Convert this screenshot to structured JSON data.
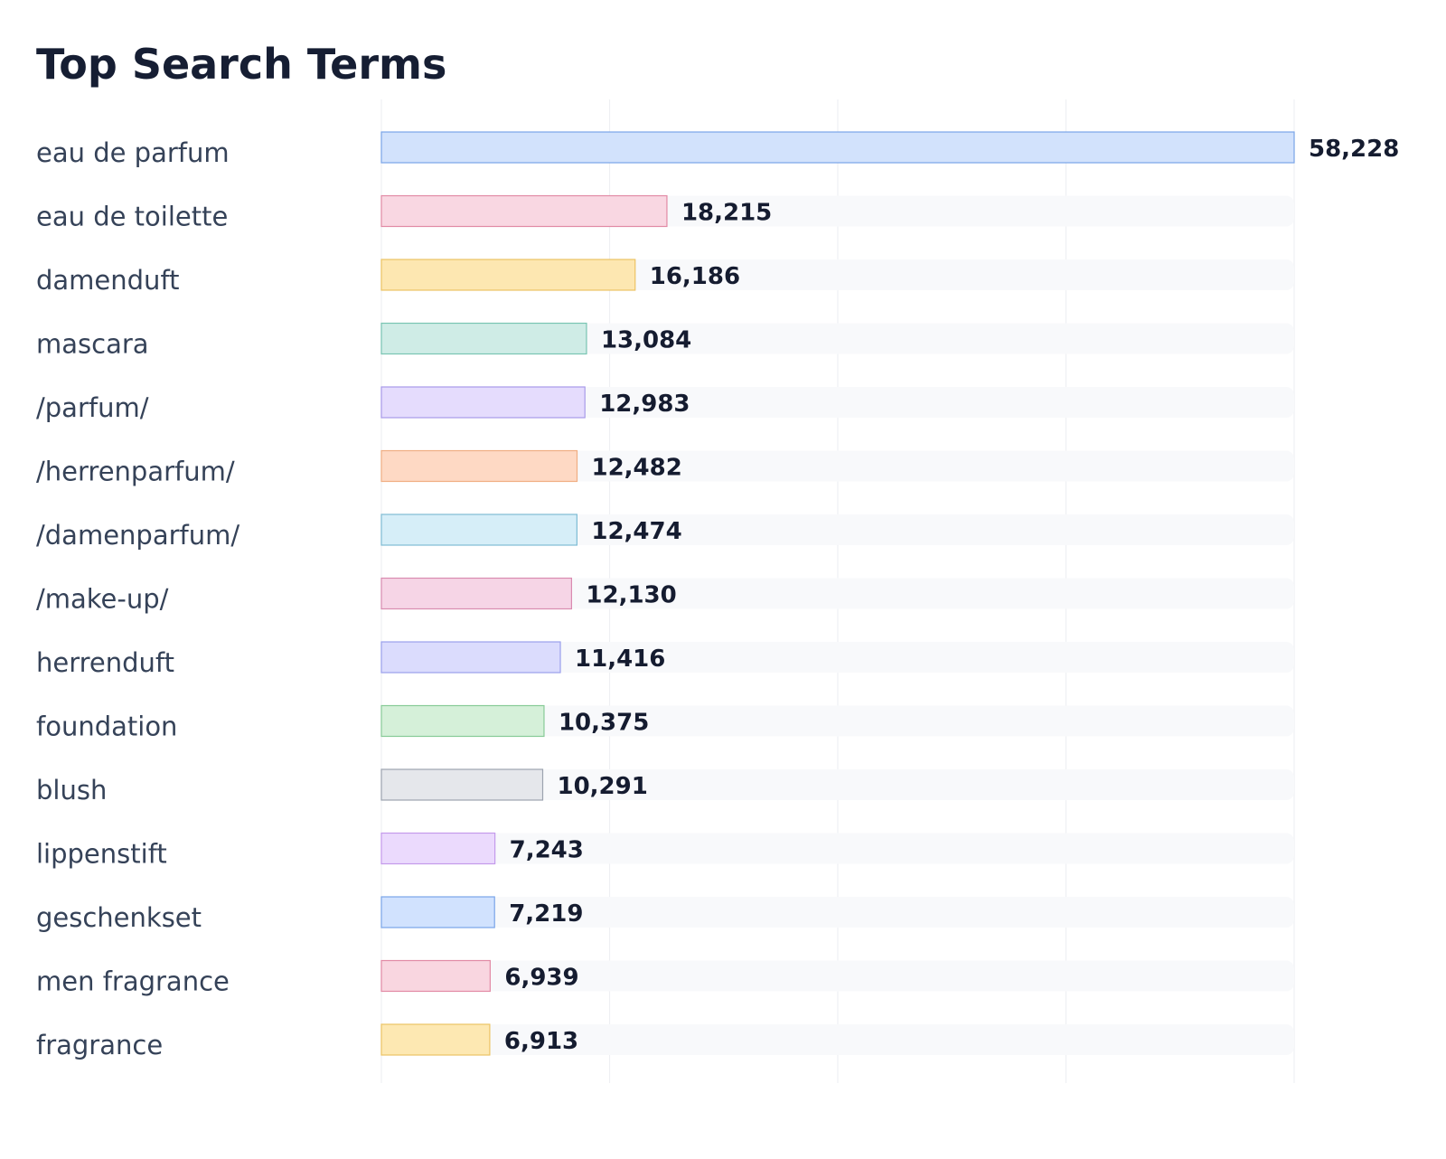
{
  "chart_data": {
    "type": "bar",
    "orientation": "horizontal",
    "title": "Top Search Terms",
    "xlabel": "",
    "ylabel": "",
    "xlim": [
      0,
      58228
    ],
    "grid": true,
    "legend": "none",
    "categories": [
      "eau de parfum",
      "eau de toilette",
      "damenduft",
      "mascara",
      "/parfum/",
      "/herrenparfum/",
      "/damenparfum/",
      "/make-up/",
      "herrenduft",
      "foundation",
      "blush",
      "lippenstift",
      "geschenkset",
      "men fragrance",
      "fragrance"
    ],
    "values": [
      58228,
      18215,
      16186,
      13084,
      12983,
      12482,
      12474,
      12130,
      11416,
      10375,
      10291,
      7243,
      7219,
      6939,
      6913
    ],
    "value_labels": [
      "58,228",
      "18,215",
      "16,186",
      "13,084",
      "12,983",
      "12,482",
      "12,474",
      "12,130",
      "11,416",
      "10,375",
      "10,291",
      "7,243",
      "7,219",
      "6,939",
      "6,913"
    ],
    "bar_fill_colors": [
      "#d2e2fc",
      "#f9d7e2",
      "#fde7b1",
      "#cfece6",
      "#e5dcfd",
      "#fed9c4",
      "#d6eef8",
      "#f6d5e6",
      "#dbdcfd",
      "#d5f0d9",
      "#e5e7eb",
      "#ebdafd",
      "#d1e2fe",
      "#f9d6e0",
      "#fde8b2"
    ],
    "bar_border_colors": [
      "#7aa5e8",
      "#e28aa5",
      "#ecc364",
      "#79c5b2",
      "#a89ae9",
      "#f0ae83",
      "#7fbcd4",
      "#d98bb0",
      "#9aa0ec",
      "#88cb98",
      "#9ca3af",
      "#c49aeb",
      "#7aa5e8",
      "#e28aa5",
      "#ecc364"
    ],
    "track_color": "#f8f9fb",
    "grid_color": "#eef0f3"
  }
}
